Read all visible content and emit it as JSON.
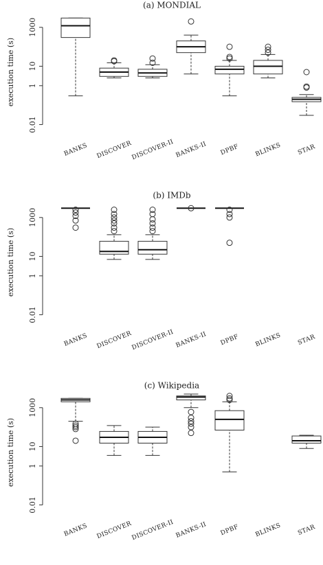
{
  "chart_data": [
    {
      "type": "box",
      "title": "(a) MONDIAL",
      "y_label": "execution time (s)",
      "log_y": true,
      "ylim": [
        0.005,
        5000
      ],
      "yticks": [
        0.01,
        1,
        10,
        1000
      ],
      "categories": [
        "BANKS",
        "DISCOVER",
        "DISCOVER-II",
        "BANKS-II",
        "DPBF",
        "BLINKS",
        "STAR"
      ],
      "boxes": [
        {
          "whisker_low": 0.3,
          "q1": 300,
          "median": 1200,
          "q3": 3000,
          "whisker_high": 3000,
          "outliers": []
        },
        {
          "whisker_low": 2.5,
          "q1": 3,
          "median": 5,
          "q3": 8,
          "whisker_high": 15,
          "outliers": [
            18,
            20
          ]
        },
        {
          "whisker_low": 2.5,
          "q1": 3,
          "median": 4.5,
          "q3": 7,
          "whisker_high": 12,
          "outliers": [
            15,
            25
          ]
        },
        {
          "whisker_low": 4,
          "q1": 50,
          "median": 100,
          "q3": 200,
          "whisker_high": 400,
          "outliers": [
            2000
          ]
        },
        {
          "whisker_low": 0.3,
          "q1": 4,
          "median": 7,
          "q3": 10,
          "whisker_high": 20,
          "outliers": [
            25,
            30,
            100
          ]
        },
        {
          "whisker_low": 2.5,
          "q1": 4,
          "median": 10,
          "q3": 20,
          "whisker_high": 40,
          "outliers": [
            50,
            70,
            100
          ]
        },
        {
          "whisker_low": 0.03,
          "q1": 0.15,
          "median": 0.2,
          "q3": 0.25,
          "whisker_high": 0.35,
          "outliers": [
            0.8,
            0.9,
            5
          ]
        }
      ]
    },
    {
      "type": "box",
      "title": "(b) IMDb",
      "y_label": "execution time (s)",
      "log_y": true,
      "ylim": [
        0.005,
        5000
      ],
      "yticks": [
        0.01,
        1,
        10,
        1000
      ],
      "categories": [
        "BANKS",
        "DISCOVER",
        "DISCOVER-II",
        "BANKS-II",
        "DPBF",
        "BLINKS",
        "STAR"
      ],
      "boxes": [
        {
          "whisker_low": 3000,
          "q1": 3000,
          "median": 3000,
          "q3": 3000,
          "whisker_high": 3000,
          "outliers": [
            2500,
            1800,
            1200,
            700,
            300
          ]
        },
        {
          "whisker_low": 7,
          "q1": 13,
          "median": 18,
          "q3": 60,
          "whisker_high": 130,
          "outliers": [
            200,
            300,
            500,
            700,
            1000,
            1500,
            2500
          ]
        },
        {
          "whisker_low": 7,
          "q1": 13,
          "median": 22,
          "q3": 60,
          "whisker_high": 130,
          "outliers": [
            200,
            300,
            500,
            800,
            1500,
            2500
          ]
        },
        {
          "whisker_low": 3000,
          "q1": 3000,
          "median": 3000,
          "q3": 3000,
          "whisker_high": 3000,
          "outliers": [
            3000
          ]
        },
        {
          "whisker_low": 3000,
          "q1": 3000,
          "median": 3000,
          "q3": 3000,
          "whisker_high": 3000,
          "outliers": [
            2500,
            1500,
            1000,
            50
          ]
        },
        null,
        null
      ]
    },
    {
      "type": "box",
      "title": "(c) Wikipedia",
      "y_label": "execution time (s)",
      "log_y": true,
      "ylim": [
        0.005,
        5000
      ],
      "yticks": [
        0.01,
        1,
        10,
        1000
      ],
      "categories": [
        "BANKS",
        "DISCOVER",
        "DISCOVER-II",
        "BANKS-II",
        "DPBF",
        "BLINKS",
        "STAR"
      ],
      "boxes": [
        {
          "whisker_low": 200,
          "q1": 2000,
          "median": 2500,
          "q3": 3000,
          "whisker_high": 3000,
          "outliers": [
            150,
            120,
            100,
            80,
            20
          ]
        },
        {
          "whisker_low": 3.5,
          "q1": 15,
          "median": 30,
          "q3": 60,
          "whisker_high": 120,
          "outliers": []
        },
        {
          "whisker_low": 3.5,
          "q1": 15,
          "median": 30,
          "q3": 60,
          "whisker_high": 100,
          "outliers": []
        },
        {
          "whisker_low": 1000,
          "q1": 2500,
          "median": 3500,
          "q3": 4000,
          "whisker_high": 5000,
          "outliers": [
            600,
            300,
            200,
            150,
            100,
            50
          ]
        },
        {
          "whisker_low": 0.5,
          "q1": 70,
          "median": 250,
          "q3": 700,
          "whisker_high": 2000,
          "outliers": [
            2500,
            3000,
            4000
          ]
        },
        null,
        {
          "whisker_low": 8,
          "q1": 15,
          "median": 20,
          "q3": 35,
          "whisker_high": 38,
          "outliers": []
        }
      ]
    }
  ]
}
